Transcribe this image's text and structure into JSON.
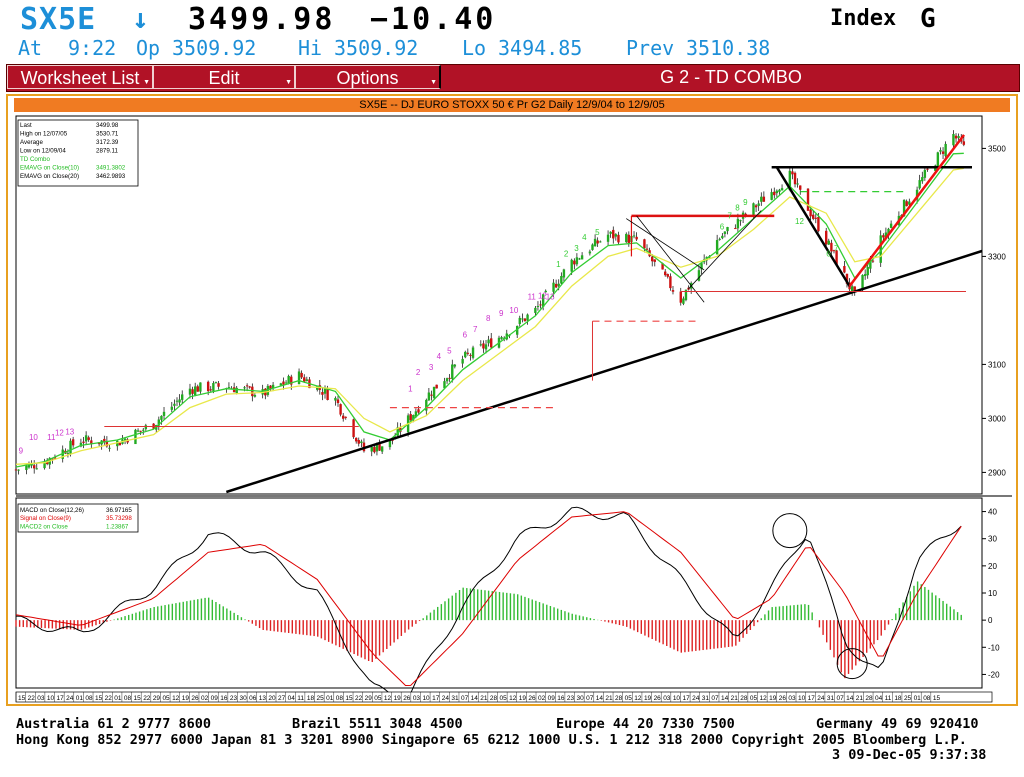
{
  "header": {
    "symbol": "SX5E",
    "arrow": "↓",
    "last": "3499.98",
    "change": "−10.40",
    "market": "Index",
    "group": "G"
  },
  "subheader": {
    "at_label": "At",
    "at_value": "9:22",
    "op_label": "Op",
    "op_value": "3509.92",
    "hi_label": "Hi",
    "hi_value": "3509.92",
    "lo_label": "Lo",
    "lo_value": "3494.85",
    "prev_label": "Prev",
    "prev_value": "3510.38"
  },
  "menubar": {
    "worksheet_list": "Worksheet List",
    "edit": "Edit",
    "options": "Options",
    "title": "G  2 - TD COMBO"
  },
  "chart": {
    "title": "SX5E -- DJ EURO STOXX 50 € Pr G2 Daily 12/9/04 to 12/9/05",
    "legend": [
      {
        "label": "Last",
        "value": "3499.98",
        "color": "#000000"
      },
      {
        "label": "High on  12/07/05",
        "value": "3530.71",
        "color": "#000000"
      },
      {
        "label": "Average",
        "value": "3172.39",
        "color": "#000000"
      },
      {
        "label": "Low on  12/09/04",
        "value": "2879.11",
        "color": "#000000"
      },
      {
        "label": "TD Combo",
        "value": "",
        "color": "#22bb22"
      },
      {
        "label": "EMAVG on Close(10)",
        "value": "3491.3802",
        "color": "#22bb22"
      },
      {
        "label": "EMAVG on Close(20)",
        "value": "3462.9893",
        "color": "#000000"
      }
    ],
    "macd_legend": [
      {
        "label": "MACD on Close(12,26)",
        "value": "36.97165",
        "color": "#000000"
      },
      {
        "label": "Signal on Close(9)",
        "value": "35.73298",
        "color": "#dd0000"
      },
      {
        "label": "MACD2 on Close",
        "value": "1.23867",
        "color": "#22bb22"
      }
    ],
    "price_axis": [
      "3500",
      "3300",
      "3100",
      "3000",
      "2900"
    ],
    "macd_axis": [
      "40",
      "30",
      "20",
      "10",
      "0",
      "-10",
      "-20"
    ],
    "date_ticks": [
      "15",
      "22",
      "03",
      "10",
      "17",
      "24",
      "01",
      "08",
      "15",
      "22",
      "01",
      "08",
      "15",
      "22",
      "29",
      "05",
      "12",
      "19",
      "26",
      "02",
      "09",
      "16",
      "23",
      "30",
      "06",
      "13",
      "20",
      "27",
      "04",
      "11",
      "18",
      "25",
      "01",
      "08",
      "15",
      "22",
      "29",
      "05",
      "12",
      "19",
      "26",
      "03",
      "10",
      "17",
      "24",
      "31",
      "07",
      "14",
      "21",
      "28",
      "05",
      "12",
      "19",
      "26",
      "02",
      "09",
      "16",
      "23",
      "30",
      "07",
      "14",
      "21",
      "28",
      "05",
      "12",
      "19",
      "26",
      "03",
      "10",
      "17",
      "24",
      "31",
      "07",
      "14",
      "21",
      "28",
      "05",
      "12",
      "19",
      "26",
      "03",
      "10",
      "17",
      "24",
      "31",
      "07",
      "14",
      "21",
      "28",
      "04",
      "11",
      "18",
      "25",
      "01",
      "08",
      "15"
    ],
    "month_labels": [
      "2004 Dec",
      "2005 Jan",
      "2005 Feb",
      "2005 Mar",
      "2005 Apr",
      "2005 May",
      "2005 Jun",
      "2005 Jul",
      "2005 Aug",
      "2005 Sep",
      "2005 Oct",
      "2005 Nov",
      "2005 Dec"
    ],
    "td_labels": [
      "9",
      "10",
      "11",
      "12",
      "13",
      "1",
      "2",
      "3",
      "4",
      "5",
      "6",
      "7",
      "8",
      "9",
      "10",
      "11",
      "12",
      "13",
      "1",
      "2",
      "3",
      "4",
      "5",
      "6",
      "7",
      "8",
      "9",
      "12",
      "6",
      "7"
    ]
  },
  "chart_data": {
    "type": "line",
    "title": "SX5E -- DJ EURO STOXX 50 € Pr G2 Daily 12/9/04 to 12/9/05",
    "x": [
      "2004-12-09",
      "2004-12-20",
      "2005-01-03",
      "2005-01-17",
      "2005-01-31",
      "2005-02-14",
      "2005-02-28",
      "2005-03-14",
      "2005-03-28",
      "2005-04-11",
      "2005-04-22",
      "2005-05-02",
      "2005-05-16",
      "2005-05-30",
      "2005-06-13",
      "2005-06-27",
      "2005-07-11",
      "2005-07-25",
      "2005-08-05",
      "2005-08-22",
      "2005-09-05",
      "2005-09-19",
      "2005-10-03",
      "2005-10-17",
      "2005-10-28",
      "2005-11-07",
      "2005-11-21",
      "2005-12-05",
      "2005-12-09"
    ],
    "series": [
      {
        "name": "",
        "values": [
          2905,
          2920,
          2960,
          2955,
          2990,
          3055,
          3060,
          3045,
          3080,
          3035,
          2940,
          2955,
          3040,
          3110,
          3150,
          3200,
          3290,
          3340,
          3330,
          3220,
          3330,
          3390,
          3450,
          3330,
          3225,
          3330,
          3430,
          3525,
          3500
        ]
      },
      {
        "name": "EMAVG on Close(10)",
        "values": [
          2910,
          2920,
          2950,
          2960,
          2980,
          3040,
          3055,
          3050,
          3070,
          3050,
          2975,
          2960,
          3020,
          3090,
          3140,
          3190,
          3270,
          3320,
          3325,
          3260,
          3310,
          3370,
          3430,
          3360,
          3260,
          3310,
          3400,
          3490,
          3491
        ]
      },
      {
        "name": "EMAVG on Close(20)",
        "values": [
          2915,
          2918,
          2940,
          2955,
          2970,
          3020,
          3045,
          3048,
          3060,
          3055,
          3000,
          2975,
          3005,
          3070,
          3120,
          3170,
          3245,
          3300,
          3315,
          3280,
          3300,
          3350,
          3410,
          3380,
          3290,
          3300,
          3380,
          3460,
          3463
        ]
      }
    ],
    "macd": {
      "x": [
        "2004-12-09",
        "2005-01-03",
        "2005-01-31",
        "2005-02-21",
        "2005-03-14",
        "2005-04-04",
        "2005-04-25",
        "2005-05-09",
        "2005-05-30",
        "2005-06-20",
        "2005-07-11",
        "2005-08-01",
        "2005-08-22",
        "2005-09-12",
        "2005-09-26",
        "2005-10-10",
        "2005-10-24",
        "2005-11-07",
        "2005-11-21",
        "2005-12-09"
      ],
      "series": [
        {
          "name": "MACD on Close(12,26)",
          "values": [
            0,
            -5,
            12,
            32,
            25,
            10,
            -25,
            -28,
            5,
            30,
            40,
            38,
            15,
            -8,
            12,
            33,
            -8,
            -20,
            22,
            37
          ]
        },
        {
          "name": "Signal on Close(9)",
          "values": [
            2,
            -2,
            8,
            25,
            28,
            15,
            -12,
            -25,
            -5,
            22,
            38,
            40,
            25,
            0,
            8,
            28,
            10,
            -15,
            10,
            36
          ]
        }
      ],
      "ylim": [
        -25,
        45
      ]
    },
    "ylim": [
      2860,
      3560
    ],
    "annotations": [
      "TD Combo counts",
      "trendlines",
      "support/resistance lines"
    ]
  },
  "footer": {
    "line1": [
      {
        "text": "Australia 61 2 9777 8600"
      },
      {
        "text": "Brazil 5511 3048 4500"
      },
      {
        "text": "Europe 44 20 7330 7500"
      },
      {
        "text": "Germany 49 69 920410"
      }
    ],
    "line2": "Hong Kong 852 2977 6000 Japan 81 3 3201 8900 Singapore 65 6212 1000 U.S. 1 212 318 2000 Copyright 2005 Bloomberg L.P.",
    "line3": "3 09-Dec-05  9:37:38"
  }
}
